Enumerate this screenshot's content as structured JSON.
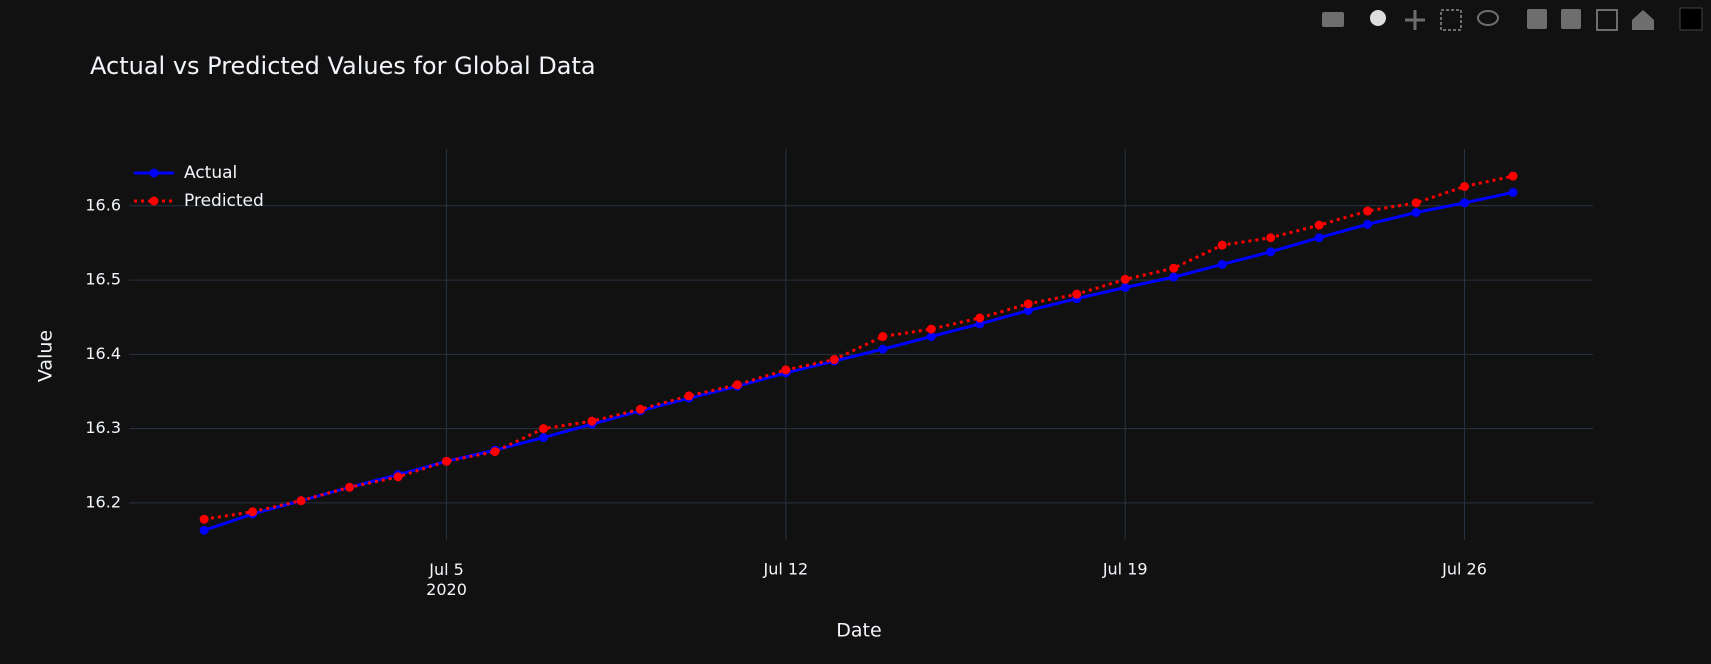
{
  "chart_data": {
    "type": "line",
    "title": "Actual vs Predicted Values for Global Data",
    "x_label": "Date",
    "y_label": "Value",
    "x": [
      "2020-06-30",
      "2020-07-01",
      "2020-07-02",
      "2020-07-03",
      "2020-07-04",
      "2020-07-05",
      "2020-07-06",
      "2020-07-07",
      "2020-07-08",
      "2020-07-09",
      "2020-07-10",
      "2020-07-11",
      "2020-07-12",
      "2020-07-13",
      "2020-07-14",
      "2020-07-15",
      "2020-07-16",
      "2020-07-17",
      "2020-07-18",
      "2020-07-19",
      "2020-07-20",
      "2020-07-21",
      "2020-07-22",
      "2020-07-23",
      "2020-07-24",
      "2020-07-25",
      "2020-07-26",
      "2020-07-27"
    ],
    "series": [
      {
        "name": "Actual",
        "color": "#0000ff",
        "dash": "solid",
        "values": [
          16.163,
          16.185,
          16.203,
          16.221,
          16.238,
          16.256,
          16.271,
          16.288,
          16.306,
          16.324,
          16.341,
          16.357,
          16.375,
          16.391,
          16.407,
          16.424,
          16.441,
          16.459,
          16.475,
          16.49,
          16.504,
          16.521,
          16.538,
          16.557,
          16.575,
          16.591,
          16.604,
          16.618
        ]
      },
      {
        "name": "Predicted",
        "color": "#ff0000",
        "dash": "dot",
        "values": [
          16.178,
          16.188,
          16.203,
          16.221,
          16.235,
          16.256,
          16.269,
          16.3,
          16.31,
          16.326,
          16.344,
          16.359,
          16.379,
          16.393,
          16.424,
          16.434,
          16.449,
          16.468,
          16.481,
          16.501,
          16.516,
          16.547,
          16.557,
          16.574,
          16.593,
          16.604,
          16.626,
          16.64
        ]
      }
    ],
    "xlim": [
      "2020-06-28T10:48:00",
      "2020-07-28T15:36:00"
    ],
    "xticks": [
      {
        "value": "2020-07-05",
        "label": "Jul 5\n2020"
      },
      {
        "value": "2020-07-12",
        "label": "Jul 12"
      },
      {
        "value": "2020-07-19",
        "label": "Jul 19"
      },
      {
        "value": "2020-07-26",
        "label": "Jul 26"
      }
    ],
    "ylim": [
      16.15,
      16.6765
    ],
    "yticks": [
      16.2,
      16.3,
      16.4,
      16.5,
      16.6
    ],
    "grid": true,
    "legend": "top-left"
  }
}
